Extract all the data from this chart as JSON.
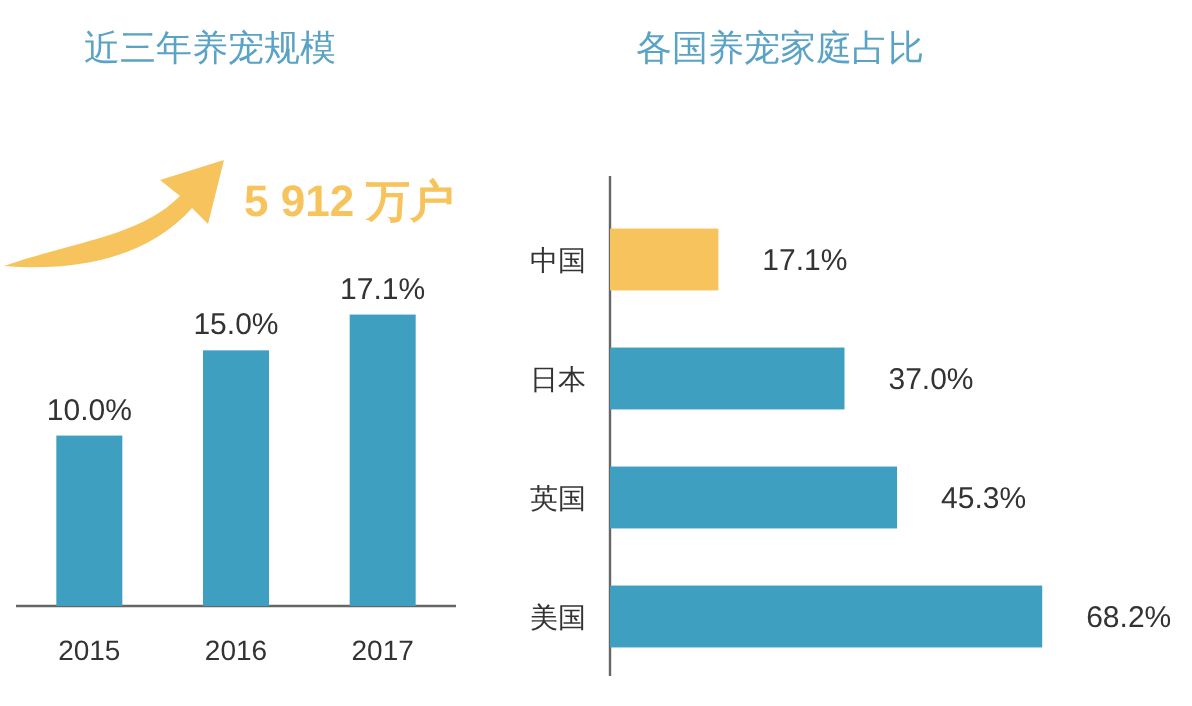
{
  "chart_data": [
    {
      "type": "bar",
      "title": "近三年养宠规模",
      "categories": [
        "2015",
        "2016",
        "2017"
      ],
      "values": [
        10.0,
        15.0,
        17.1
      ],
      "color": "#3f9fc1",
      "value_labels": [
        "10.0%",
        "15.0%",
        "17.1%"
      ],
      "annotations": [
        "5 912 万户"
      ]
    },
    {
      "type": "bar",
      "orientation": "horizontal",
      "title": "各国养宠家庭占比",
      "categories": [
        "中国",
        "日本",
        "英国",
        "美国"
      ],
      "values": [
        17.1,
        37.0,
        45.3,
        68.2
      ],
      "colors": [
        "#f7c35c",
        "#3f9fc1",
        "#3f9fc1",
        "#3f9fc1"
      ],
      "value_labels": [
        "17.1%",
        "37.0%",
        "45.3%",
        "68.2%"
      ]
    }
  ]
}
